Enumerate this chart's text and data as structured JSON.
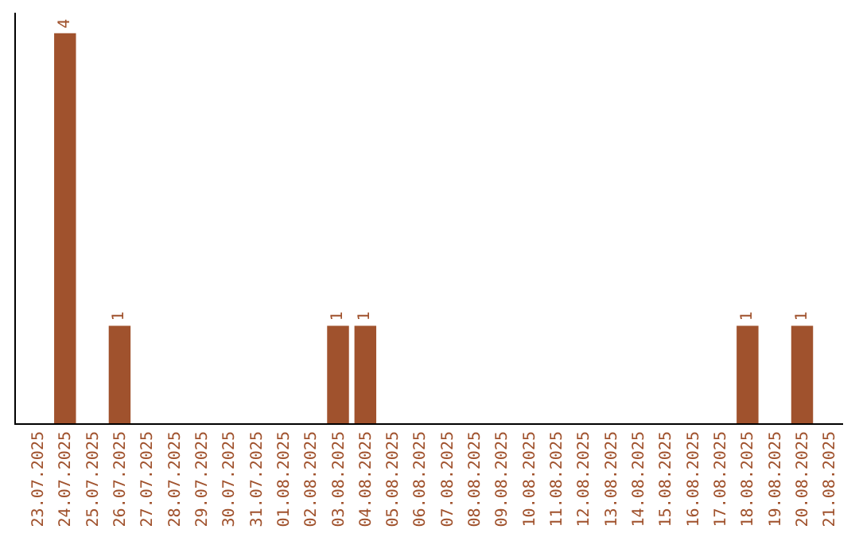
{
  "chart_data": {
    "type": "bar",
    "categories": [
      "23.07.2025",
      "24.07.2025",
      "25.07.2025",
      "26.07.2025",
      "27.07.2025",
      "28.07.2025",
      "29.07.2025",
      "30.07.2025",
      "31.07.2025",
      "01.08.2025",
      "02.08.2025",
      "03.08.2025",
      "04.08.2025",
      "05.08.2025",
      "06.08.2025",
      "07.08.2025",
      "08.08.2025",
      "09.08.2025",
      "10.08.2025",
      "11.08.2025",
      "12.08.2025",
      "13.08.2025",
      "14.08.2025",
      "15.08.2025",
      "16.08.2025",
      "17.08.2025",
      "18.08.2025",
      "19.08.2025",
      "20.08.2025",
      "21.08.2025"
    ],
    "values": [
      0,
      4,
      0,
      1,
      0,
      0,
      0,
      0,
      0,
      0,
      0,
      1,
      1,
      0,
      0,
      0,
      0,
      0,
      0,
      0,
      0,
      0,
      0,
      0,
      0,
      0,
      1,
      0,
      1,
      0
    ],
    "value_labels": [
      null,
      "4",
      null,
      "1",
      null,
      null,
      null,
      null,
      null,
      null,
      null,
      "1",
      "1",
      null,
      null,
      null,
      null,
      null,
      null,
      null,
      null,
      null,
      null,
      null,
      null,
      null,
      "1",
      null,
      "1",
      null
    ],
    "color": "#a0522d"
  }
}
